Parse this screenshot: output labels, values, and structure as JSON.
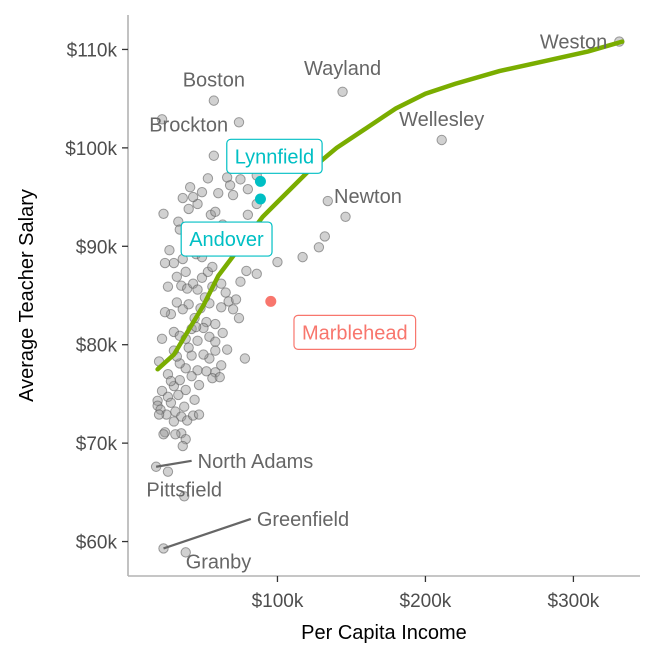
{
  "chart_data": {
    "type": "scatter",
    "title": "",
    "xlabel": "Per Capita Income",
    "ylabel": "Average Teacher Salary",
    "xlim": [
      -1000,
      345000
    ],
    "ylim": [
      56500,
      113500
    ],
    "x_ticks": [
      100000,
      200000,
      300000
    ],
    "x_tick_labels": [
      "$100k",
      "$200k",
      "$300k"
    ],
    "y_ticks": [
      60000,
      70000,
      80000,
      90000,
      100000,
      110000
    ],
    "y_tick_labels": [
      "$60k",
      "$70k",
      "$80k",
      "$90k",
      "$100k",
      "$110k"
    ],
    "grid": false,
    "colors": {
      "points": "#999999",
      "smooth": "#7aad00",
      "highlight_cyan": "#00bfc4",
      "highlight_red": "#f8766d",
      "label_text": "#666666",
      "leader_line": "#666666"
    },
    "smooth_curve": [
      [
        19000,
        77500
      ],
      [
        30000,
        79000
      ],
      [
        40000,
        81500
      ],
      [
        50000,
        84000
      ],
      [
        60000,
        87000
      ],
      [
        70000,
        89000
      ],
      [
        80000,
        91000
      ],
      [
        90000,
        93000
      ],
      [
        100000,
        94500
      ],
      [
        120000,
        97500
      ],
      [
        140000,
        100000
      ],
      [
        160000,
        102000
      ],
      [
        180000,
        104000
      ],
      [
        200000,
        105500
      ],
      [
        220000,
        106500
      ],
      [
        250000,
        107800
      ],
      [
        280000,
        108800
      ],
      [
        310000,
        109800
      ],
      [
        333000,
        110800
      ]
    ],
    "highlight_points": [
      {
        "x": 88500,
        "y": 96600,
        "color": "cyan"
      },
      {
        "x": 88500,
        "y": 94800,
        "color": "cyan"
      },
      {
        "x": 95500,
        "y": 84400,
        "color": "red"
      }
    ],
    "labels": [
      {
        "text": "Weston",
        "x": 331000,
        "y": 110800,
        "anchor": "end",
        "dx": -12,
        "dy": 7
      },
      {
        "text": "Wayland",
        "x": 144000,
        "y": 105700,
        "anchor": "middle",
        "dx": 0,
        "dy": -17
      },
      {
        "text": "Boston",
        "x": 57000,
        "y": 104800,
        "anchor": "middle",
        "dx": 0,
        "dy": -14
      },
      {
        "text": "Wellesley",
        "x": 211000,
        "y": 100800,
        "anchor": "middle",
        "dx": 0,
        "dy": -14
      },
      {
        "text": "Brockton",
        "x": 40000,
        "y": 102600,
        "anchor": "middle",
        "dx": 0,
        "dy": 9
      },
      {
        "text": "Newton",
        "x": 145000,
        "y": 93000,
        "anchor": "start",
        "dx": -10,
        "dy": -14
      },
      {
        "text": "North Adams",
        "x": 18000,
        "y": 67600,
        "anchor": "start",
        "dx": 35,
        "dy": 0,
        "leader": [
          42000,
          68200
        ]
      },
      {
        "text": "Pittsfield",
        "x": 37000,
        "y": 64600,
        "anchor": "middle",
        "dx": 0,
        "dy": 0
      },
      {
        "text": "Greenfield",
        "x": 23000,
        "y": 59300,
        "anchor": "start",
        "dx": 92,
        "dy": -21,
        "leader": [
          82000,
          62300
        ]
      },
      {
        "text": "Granby",
        "x": 38000,
        "y": 58900,
        "anchor": "start",
        "dx": 0,
        "dy": 16
      }
    ],
    "boxed_labels": [
      {
        "text": "Lynnfield",
        "x": 88500,
        "y": 96600,
        "color": "cyan",
        "dx": 14,
        "dy": -25
      },
      {
        "text": "Andover",
        "x": 88500,
        "y": 94800,
        "color": "cyan",
        "dx": -34,
        "dy": 40
      },
      {
        "text": "Marblehead",
        "x": 95500,
        "y": 84400,
        "color": "red",
        "dx": 84,
        "dy": 31
      }
    ],
    "points": [
      [
        331000,
        110800
      ],
      [
        144000,
        105700
      ],
      [
        57000,
        104800
      ],
      [
        211000,
        100800
      ],
      [
        22000,
        102900
      ],
      [
        74000,
        102600
      ],
      [
        146000,
        93000
      ],
      [
        134000,
        94600
      ],
      [
        132000,
        91000
      ],
      [
        128000,
        89900
      ],
      [
        117000,
        88900
      ],
      [
        100000,
        88400
      ],
      [
        57000,
        99200
      ],
      [
        66000,
        97000
      ],
      [
        75000,
        96800
      ],
      [
        86000,
        97200
      ],
      [
        70000,
        95200
      ],
      [
        80000,
        93200
      ],
      [
        63000,
        92200
      ],
      [
        69000,
        91200
      ],
      [
        79000,
        87500
      ],
      [
        86000,
        87200
      ],
      [
        75000,
        86400
      ],
      [
        78000,
        78600
      ],
      [
        23000,
        93300
      ],
      [
        36000,
        94900
      ],
      [
        46000,
        94300
      ],
      [
        33000,
        92500
      ],
      [
        40000,
        93800
      ],
      [
        41000,
        96000
      ],
      [
        43000,
        95000
      ],
      [
        34000,
        91700
      ],
      [
        49000,
        95500
      ],
      [
        46000,
        91000
      ],
      [
        53000,
        96900
      ],
      [
        55000,
        93200
      ],
      [
        58000,
        93500
      ],
      [
        60000,
        95400
      ],
      [
        50000,
        91600
      ],
      [
        45000,
        89200
      ],
      [
        41000,
        90400
      ],
      [
        27000,
        89600
      ],
      [
        30000,
        88300
      ],
      [
        36000,
        88700
      ],
      [
        24000,
        88300
      ],
      [
        38000,
        87400
      ],
      [
        32000,
        86900
      ],
      [
        35000,
        86000
      ],
      [
        39000,
        85700
      ],
      [
        43000,
        86200
      ],
      [
        46000,
        85600
      ],
      [
        49000,
        86800
      ],
      [
        53000,
        87400
      ],
      [
        56000,
        87900
      ],
      [
        56000,
        85900
      ],
      [
        60000,
        89500
      ],
      [
        62000,
        86200
      ],
      [
        65000,
        85300
      ],
      [
        67000,
        84400
      ],
      [
        70000,
        83600
      ],
      [
        72000,
        84600
      ],
      [
        74000,
        82700
      ],
      [
        62000,
        83800
      ],
      [
        58000,
        82100
      ],
      [
        54000,
        84200
      ],
      [
        52000,
        82300
      ],
      [
        48000,
        83700
      ],
      [
        44000,
        82700
      ],
      [
        40000,
        84100
      ],
      [
        36000,
        83600
      ],
      [
        32000,
        84300
      ],
      [
        28000,
        83100
      ],
      [
        24000,
        83300
      ],
      [
        22000,
        80600
      ],
      [
        30000,
        81300
      ],
      [
        34000,
        80900
      ],
      [
        38000,
        80600
      ],
      [
        42000,
        81600
      ],
      [
        46000,
        80400
      ],
      [
        50000,
        81700
      ],
      [
        54000,
        80800
      ],
      [
        58000,
        80300
      ],
      [
        63000,
        81200
      ],
      [
        66000,
        79500
      ],
      [
        62000,
        77900
      ],
      [
        58000,
        77200
      ],
      [
        54000,
        78600
      ],
      [
        50000,
        79000
      ],
      [
        46000,
        77400
      ],
      [
        42000,
        78900
      ],
      [
        38000,
        77600
      ],
      [
        34000,
        78100
      ],
      [
        30000,
        79400
      ],
      [
        26000,
        77000
      ],
      [
        20000,
        78300
      ],
      [
        22000,
        75300
      ],
      [
        26000,
        74700
      ],
      [
        30000,
        75800
      ],
      [
        34000,
        76400
      ],
      [
        38000,
        75400
      ],
      [
        42000,
        76800
      ],
      [
        47000,
        75900
      ],
      [
        52000,
        77300
      ],
      [
        56000,
        76600
      ],
      [
        61000,
        76700
      ],
      [
        58000,
        79400
      ],
      [
        19000,
        74300
      ],
      [
        19000,
        73800
      ],
      [
        21000,
        73400
      ],
      [
        25000,
        72900
      ],
      [
        28000,
        74100
      ],
      [
        31000,
        73200
      ],
      [
        33000,
        74900
      ],
      [
        35000,
        72700
      ],
      [
        37000,
        73700
      ],
      [
        39000,
        72300
      ],
      [
        43000,
        72800
      ],
      [
        47000,
        72900
      ],
      [
        20000,
        72900
      ],
      [
        24000,
        71100
      ],
      [
        30000,
        72200
      ],
      [
        35000,
        71000
      ],
      [
        38000,
        70400
      ],
      [
        36000,
        69700
      ],
      [
        23000,
        70900
      ],
      [
        55000,
        90400
      ],
      [
        49000,
        88900
      ],
      [
        60000,
        91300
      ],
      [
        86000,
        94300
      ],
      [
        45000,
        81800
      ],
      [
        32000,
        78800
      ],
      [
        28000,
        76300
      ],
      [
        18000,
        67600
      ],
      [
        37000,
        64600
      ],
      [
        26000,
        67100
      ],
      [
        23000,
        59300
      ],
      [
        38000,
        58900
      ],
      [
        68000,
        96200
      ],
      [
        80000,
        95800
      ],
      [
        51000,
        84800
      ],
      [
        26000,
        85900
      ],
      [
        40000,
        79700
      ],
      [
        44000,
        74400
      ],
      [
        31000,
        70900
      ]
    ]
  }
}
